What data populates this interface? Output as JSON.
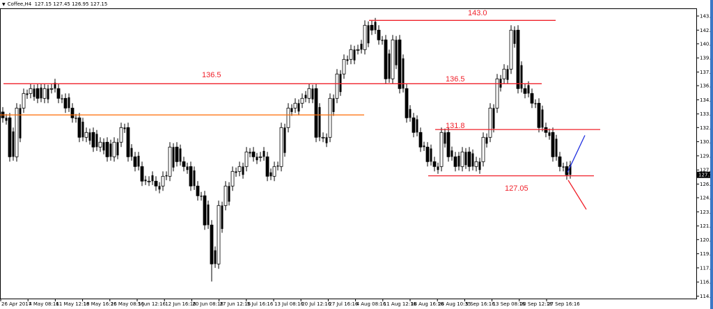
{
  "header": {
    "symbol": "Coffee,H4",
    "ohlc": "127.15 127.45 126.95 127.15"
  },
  "chart_data": {
    "type": "candlestick",
    "symbol": "Coffee",
    "timeframe": "H4",
    "ylim": [
      114.7,
      144.5
    ],
    "y_ticks": [
      "143.45",
      "142.00",
      "140.60",
      "139.15",
      "137.70",
      "136.30",
      "134.85",
      "133.40",
      "132.00",
      "130.55",
      "129.10",
      "127.65",
      "126.20",
      "124.80",
      "123.35",
      "121.90",
      "120.50",
      "119.05",
      "117.60",
      "116.15",
      "114.70"
    ],
    "x_ticks": [
      "26 Apr 2017",
      "4 May 08:16",
      "11 May 12:16",
      "18 May 16:16",
      "26 May 08:16",
      "5 Jun 12:16",
      "12 Jun 16:16",
      "20 Jun 08:16",
      "27 Jun 12:16",
      "5 Jul 16:16",
      "13 Jul 08:16",
      "20 Jul 12:16",
      "27 Jul 16:16",
      "4 Aug 08:16",
      "11 Aug 12:16",
      "18 Aug 16:16",
      "28 Aug 10:35",
      "5 Sep 16:16",
      "13 Sep 08:16",
      "20 Sep 12:16",
      "27 Sep 16:16"
    ],
    "closes": [
      133,
      129,
      134,
      135.5,
      136,
      135,
      136,
      136,
      135,
      134,
      133,
      131,
      131.5,
      130,
      130.5,
      129,
      130.5,
      132,
      129,
      128,
      126.5,
      126.5,
      126,
      127,
      130,
      128.5,
      128,
      126,
      125,
      122,
      118,
      124,
      126,
      127.5,
      128,
      129.5,
      129,
      129,
      127,
      128,
      132,
      134,
      134.5,
      135,
      136,
      131,
      131,
      135,
      137.5,
      139,
      140,
      140,
      142.5,
      142,
      141,
      137,
      141,
      136,
      133,
      131.5,
      130,
      128.5,
      128,
      131.5,
      129,
      128,
      129.5,
      128,
      128.5,
      131,
      134,
      137,
      138,
      142,
      136,
      135.5,
      134.5,
      132,
      131.5,
      129,
      128,
      127.15
    ],
    "current_price": "127.15",
    "levels": [
      {
        "label": "143.0",
        "price": 143.0,
        "color": "#f0202a"
      },
      {
        "label": "136.5",
        "price": 136.5,
        "color": "#f0202a"
      },
      {
        "label": "136.5",
        "price": 136.5,
        "color": "#f0202a"
      },
      {
        "price": 133.3,
        "color": "#ff6a00"
      },
      {
        "label": "131.8",
        "price": 131.8,
        "color": "#f0202a"
      },
      {
        "label": "127.05",
        "price": 127.05,
        "color": "#f0202a"
      }
    ],
    "scenario_lines": [
      {
        "direction": "up",
        "color": "#2030e0",
        "from_price": 127.4,
        "to_price": 131.2
      },
      {
        "direction": "down",
        "color": "#f0202a",
        "from_price": 126.6,
        "to_price": 123.6
      }
    ]
  }
}
